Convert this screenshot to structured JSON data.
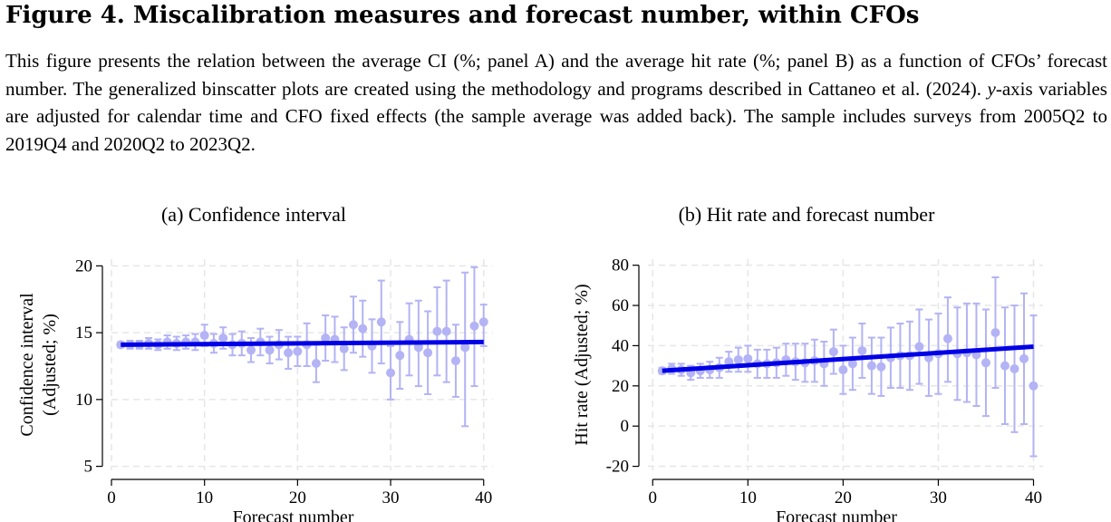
{
  "figure": {
    "title": "Figure 4. Miscalibration measures and forecast number, within CFOs",
    "caption_pre": "This figure presents the relation between the average CI (%; panel A) and the average hit rate (%; panel B) as a function of CFOs’ forecast number. The generalized binscatter plots are created using the methodology and programs described in Cattaneo et al. (2024). ",
    "caption_var": "y",
    "caption_post": "-axis variables are adjusted for calendar time and CFO fixed effects (the sample average was added back). The sample includes surveys from 2005Q2 to 2019Q4 and 2020Q2 to 2023Q2."
  },
  "colors": {
    "points": "#b3b3f5",
    "line": "#0000e6",
    "grid": "#e6e6e6",
    "axis": "#000000"
  },
  "chart_data": [
    {
      "type": "scatter",
      "title": "(a) Confidence interval",
      "xlabel": "Forecast number",
      "ylabel": "Confidence interval (Adjusted; %)",
      "ylabel_lines": [
        "Confidence interval",
        "(Adjusted; %)"
      ],
      "xlim": [
        0,
        41
      ],
      "ylim": [
        4.7,
        20.5
      ],
      "xticks": [
        0,
        10,
        20,
        30,
        40
      ],
      "yticks": [
        5,
        10,
        15,
        20
      ],
      "grid": true,
      "x": [
        1,
        2,
        3,
        4,
        5,
        6,
        7,
        8,
        9,
        10,
        11,
        12,
        13,
        14,
        15,
        16,
        17,
        18,
        19,
        20,
        21,
        22,
        23,
        24,
        25,
        26,
        27,
        28,
        29,
        30,
        31,
        32,
        33,
        34,
        35,
        36,
        37,
        38,
        39,
        40
      ],
      "y": [
        14.1,
        14.1,
        14.1,
        14.2,
        14.1,
        14.3,
        14.2,
        14.3,
        14.3,
        14.8,
        14.2,
        14.6,
        14.1,
        14.2,
        13.7,
        14.3,
        13.7,
        14.1,
        13.5,
        13.6,
        14.1,
        12.7,
        14.6,
        14.5,
        13.8,
        15.6,
        15.3,
        14.0,
        15.8,
        12.0,
        13.3,
        14.5,
        13.9,
        13.5,
        15.1,
        15.1,
        12.9,
        13.9,
        15.5,
        15.8
      ],
      "y_lower": [
        13.9,
        13.8,
        13.8,
        13.8,
        13.7,
        13.8,
        13.7,
        13.8,
        13.7,
        14.0,
        13.5,
        13.8,
        13.3,
        13.3,
        12.8,
        13.3,
        12.7,
        13.0,
        12.3,
        12.5,
        12.5,
        11.3,
        12.9,
        12.8,
        12.2,
        13.5,
        13.2,
        12.0,
        12.7,
        10.0,
        10.8,
        11.8,
        11.0,
        10.4,
        11.8,
        11.3,
        10.2,
        8.0,
        11.0,
        14.0
      ],
      "y_upper": [
        14.3,
        14.4,
        14.4,
        14.6,
        14.5,
        14.8,
        14.7,
        14.8,
        14.9,
        15.6,
        14.9,
        15.4,
        14.9,
        15.1,
        14.6,
        15.3,
        14.7,
        15.2,
        14.7,
        14.7,
        15.7,
        14.1,
        16.3,
        16.2,
        15.4,
        17.7,
        17.4,
        16.0,
        18.9,
        14.0,
        15.8,
        17.2,
        17.4,
        16.6,
        18.4,
        18.9,
        15.6,
        19.5,
        19.9,
        17.1
      ],
      "fit": {
        "x": [
          1,
          40
        ],
        "y": [
          14.1,
          14.3
        ]
      }
    },
    {
      "type": "scatter",
      "title": "(b) Hit rate and forecast number",
      "xlabel": "Forecast number",
      "ylabel": "Hit rate (Adjusted; %)",
      "ylabel_lines": [
        "Hit rate (Adjusted; %)"
      ],
      "xlim": [
        -0.5,
        41
      ],
      "ylim": [
        -22,
        83
      ],
      "xticks": [
        0,
        10,
        20,
        30,
        40
      ],
      "yticks": [
        -20,
        0,
        20,
        40,
        60,
        80
      ],
      "grid": true,
      "x": [
        1,
        2,
        3,
        4,
        5,
        6,
        7,
        8,
        9,
        10,
        11,
        12,
        13,
        14,
        15,
        16,
        17,
        18,
        19,
        20,
        21,
        22,
        23,
        24,
        25,
        26,
        27,
        28,
        29,
        30,
        31,
        32,
        33,
        34,
        35,
        36,
        37,
        38,
        39,
        40
      ],
      "y": [
        27.5,
        28.5,
        28.0,
        26.5,
        27.5,
        28.0,
        29.0,
        32.0,
        33.0,
        33.5,
        31.0,
        31.0,
        31.5,
        33.0,
        32.0,
        31.5,
        32.5,
        31.0,
        37.0,
        28.0,
        31.0,
        37.5,
        30.0,
        29.5,
        34.0,
        35.0,
        35.0,
        39.5,
        34.0,
        36.0,
        43.5,
        36.0,
        36.5,
        35.5,
        31.5,
        46.5,
        30.0,
        28.5,
        33.5,
        20.0
      ],
      "y_lower": [
        26.0,
        26.0,
        25.0,
        23.0,
        24.0,
        24.0,
        24.0,
        27.0,
        27.0,
        27.0,
        24.0,
        24.0,
        24.0,
        25.0,
        23.0,
        22.0,
        22.0,
        20.0,
        26.0,
        16.0,
        18.0,
        24.0,
        16.0,
        15.0,
        19.0,
        19.0,
        18.0,
        21.0,
        15.0,
        16.0,
        22.0,
        13.0,
        12.0,
        10.0,
        5.0,
        19.0,
        1.0,
        -3.0,
        1.0,
        -15.0
      ],
      "y_upper": [
        29.0,
        31.0,
        31.0,
        30.0,
        31.0,
        32.0,
        34.0,
        37.0,
        39.0,
        40.0,
        38.0,
        38.0,
        39.0,
        41.0,
        41.0,
        41.0,
        43.0,
        42.0,
        48.0,
        40.0,
        44.0,
        51.0,
        44.0,
        44.0,
        49.0,
        51.0,
        52.0,
        58.0,
        53.0,
        56.0,
        64.0,
        59.0,
        61.0,
        61.0,
        58.0,
        74.0,
        59.0,
        60.0,
        66.0,
        55.0
      ],
      "fit": {
        "x": [
          1,
          40
        ],
        "y": [
          27.5,
          39.5
        ]
      }
    }
  ]
}
